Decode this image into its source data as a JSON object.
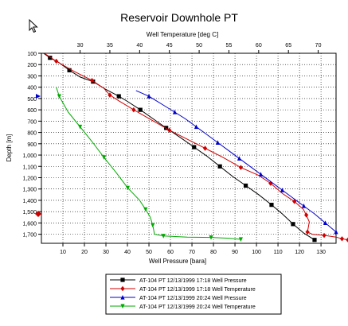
{
  "chart_data": {
    "type": "line",
    "title": "Reservoir Downhole PT",
    "xlabel_bottom": "Well Pressure [bara]",
    "xlabel_top": "Well Temperature [deg C]",
    "ylabel": "Depth [m]",
    "xlim_bottom": [
      0,
      137
    ],
    "xlim_top": [
      23.5,
      73
    ],
    "ylim": [
      100,
      1780
    ],
    "y_inverted": true,
    "grid": true,
    "legend_position": "bottom",
    "bottom_ticks": [
      10,
      20,
      30,
      40,
      50,
      60,
      70,
      80,
      90,
      100,
      110,
      120,
      130
    ],
    "top_ticks": [
      30,
      35,
      40,
      45,
      50,
      55,
      60,
      65,
      70
    ],
    "y_ticks": [
      100,
      200,
      300,
      400,
      500,
      600,
      700,
      800,
      900,
      1000,
      1100,
      1200,
      1300,
      1400,
      1500,
      1600,
      1700
    ],
    "y_tick_labels": [
      "100",
      "200",
      "300",
      "400",
      "500",
      "600",
      "700",
      "800",
      "900",
      "1,000",
      "1,100",
      "1,200",
      "1,300",
      "1,400",
      "1,500",
      "1,600",
      "1,700"
    ],
    "series": [
      {
        "name": "AT-104 PT 12/13/1999 17:18 Well Pressure",
        "axis": "bottom",
        "color": "#000000",
        "marker": "square",
        "points": [
          [
            1,
            100
          ],
          [
            4,
            140
          ],
          [
            8,
            180
          ],
          [
            13,
            250
          ],
          [
            18,
            310
          ],
          [
            24,
            350
          ],
          [
            30,
            420
          ],
          [
            36,
            480
          ],
          [
            40,
            525
          ],
          [
            46,
            600
          ],
          [
            52,
            680
          ],
          [
            58,
            760
          ],
          [
            65,
            850
          ],
          [
            71,
            930
          ],
          [
            77,
            1010
          ],
          [
            83,
            1100
          ],
          [
            89,
            1190
          ],
          [
            95,
            1270
          ],
          [
            101,
            1350
          ],
          [
            107,
            1440
          ],
          [
            112,
            1520
          ],
          [
            117,
            1610
          ],
          [
            122,
            1690
          ],
          [
            127,
            1750
          ]
        ]
      },
      {
        "name": "AT-104 PT 12/13/1999 17:18 Well Temperature",
        "axis": "top",
        "color": "#d00000",
        "marker": "diamond",
        "points": [
          [
            24,
            100
          ],
          [
            26,
            170
          ],
          [
            29,
            260
          ],
          [
            32,
            340
          ],
          [
            34,
            410
          ],
          [
            35,
            470
          ],
          [
            36.5,
            520
          ],
          [
            39,
            600
          ],
          [
            42,
            690
          ],
          [
            45,
            780
          ],
          [
            48,
            860
          ],
          [
            51,
            940
          ],
          [
            54,
            1020
          ],
          [
            57,
            1110
          ],
          [
            60,
            1180
          ],
          [
            62,
            1250
          ],
          [
            64,
            1340
          ],
          [
            66,
            1410
          ],
          [
            67.5,
            1480
          ],
          [
            68,
            1530
          ],
          [
            68.5,
            1590
          ],
          [
            68.2,
            1680
          ],
          [
            69,
            1700
          ],
          [
            71,
            1710
          ],
          [
            73,
            1725
          ],
          [
            74,
            1740
          ],
          [
            75,
            1750
          ]
        ]
      },
      {
        "name": "AT-104 PT 12/13/1999 20:24 Well Pressure",
        "axis": "bottom",
        "color": "#0000cc",
        "marker": "triangle-up",
        "points": [
          [
            44,
            430
          ],
          [
            50,
            480
          ],
          [
            56,
            550
          ],
          [
            62,
            620
          ],
          [
            67,
            680
          ],
          [
            72,
            750
          ],
          [
            77,
            820
          ],
          [
            82,
            890
          ],
          [
            87,
            960
          ],
          [
            92,
            1030
          ],
          [
            97,
            1100
          ],
          [
            102,
            1170
          ],
          [
            107,
            1240
          ],
          [
            112,
            1310
          ],
          [
            117,
            1380
          ],
          [
            122,
            1450
          ],
          [
            127,
            1520
          ],
          [
            132,
            1600
          ],
          [
            137,
            1680
          ]
        ]
      },
      {
        "name": "AT-104 PT 12/13/1999 20:24 Well Temperature",
        "axis": "top",
        "color": "#00aa00",
        "marker": "triangle-down",
        "points": [
          [
            26,
            400
          ],
          [
            26.5,
            480
          ],
          [
            28,
            620
          ],
          [
            30,
            750
          ],
          [
            32,
            880
          ],
          [
            34,
            1020
          ],
          [
            36,
            1150
          ],
          [
            38,
            1290
          ],
          [
            40,
            1400
          ],
          [
            41,
            1480
          ],
          [
            41.8,
            1550
          ],
          [
            42.2,
            1620
          ],
          [
            42.5,
            1700
          ],
          [
            44,
            1715
          ],
          [
            48,
            1725
          ],
          [
            52,
            1728
          ],
          [
            55,
            1735
          ],
          [
            57,
            1745
          ]
        ]
      }
    ]
  },
  "cursor": {
    "icon": "arrow-cursor-icon"
  },
  "side_markers": [
    {
      "icon": "blue-triangle-marker-icon",
      "color": "#0000cc",
      "depth": 480
    },
    {
      "icon": "red-diamond-marker-icon",
      "color": "#cc0000",
      "depth": 1520
    }
  ]
}
